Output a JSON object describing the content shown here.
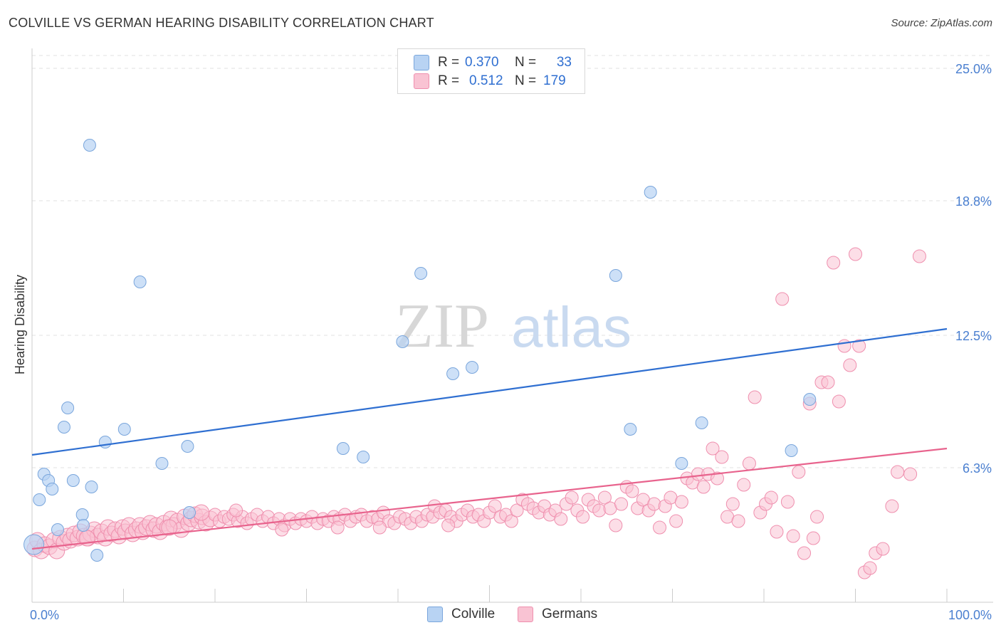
{
  "title": "COLVILLE VS GERMAN HEARING DISABILITY CORRELATION CHART",
  "source": "Source: ZipAtlas.com",
  "watermark": {
    "zip": "ZIP",
    "atlas": "atlas"
  },
  "legend_top": [
    {
      "r_label": "R =",
      "r_value": "0.370",
      "n_label": "N =",
      "n_value": "33"
    },
    {
      "r_label": "R =",
      "r_value": "0.512",
      "n_label": "N =",
      "n_value": "179"
    }
  ],
  "colors": {
    "colville_fill": "#b8d3f3",
    "colville_stroke": "#7aa6dc",
    "colville_line": "#2f6fd1",
    "germans_fill": "#f9c3d3",
    "germans_stroke": "#ef8fae",
    "germans_line": "#e8638d",
    "axis_label": "#4a7fd0",
    "value_text": "#2f6fd1"
  },
  "chart_data": {
    "type": "scatter",
    "title": "COLVILLE VS GERMAN HEARING DISABILITY CORRELATION CHART",
    "xlabel": "",
    "ylabel": "Hearing Disability",
    "xlim": [
      0,
      100
    ],
    "ylim": [
      0,
      25.6
    ],
    "x_tick_labels": [
      "0.0%",
      "100.0%"
    ],
    "y_ticks": [
      6.3,
      12.5,
      18.8,
      25.0
    ],
    "y_tick_labels": [
      "6.3%",
      "12.5%",
      "18.8%",
      "25.0%"
    ],
    "grid": true,
    "legend_placement": "top-center",
    "series": [
      {
        "name": "Colville",
        "r": 0.37,
        "n": 33,
        "trend": [
          [
            0,
            6.9
          ],
          [
            100,
            12.8
          ]
        ],
        "points": [
          [
            0.2,
            2.7
          ],
          [
            0.8,
            4.8
          ],
          [
            1.3,
            6.0
          ],
          [
            1.8,
            5.7
          ],
          [
            2.2,
            5.3
          ],
          [
            2.8,
            3.4
          ],
          [
            3.5,
            8.2
          ],
          [
            3.9,
            9.1
          ],
          [
            4.5,
            5.7
          ],
          [
            5.5,
            4.1
          ],
          [
            5.6,
            3.6
          ],
          [
            6.5,
            5.4
          ],
          [
            7.1,
            2.2
          ],
          [
            8.0,
            7.5
          ],
          [
            10.1,
            8.1
          ],
          [
            11.8,
            15.0
          ],
          [
            14.2,
            6.5
          ],
          [
            17.0,
            7.3
          ],
          [
            17.2,
            4.2
          ],
          [
            6.3,
            21.4
          ],
          [
            34.0,
            7.2
          ],
          [
            36.2,
            6.8
          ],
          [
            40.5,
            12.2
          ],
          [
            42.5,
            15.4
          ],
          [
            46.0,
            10.7
          ],
          [
            48.1,
            11.0
          ],
          [
            63.8,
            15.3
          ],
          [
            65.4,
            8.1
          ],
          [
            67.6,
            19.2
          ],
          [
            71.0,
            6.5
          ],
          [
            73.2,
            8.4
          ],
          [
            83.0,
            7.1
          ],
          [
            85.0,
            9.5
          ]
        ]
      },
      {
        "name": "Germans",
        "r": 0.512,
        "n": 179,
        "trend": [
          [
            0,
            2.5
          ],
          [
            100,
            7.2
          ]
        ],
        "points": [
          [
            0.3,
            2.5
          ],
          [
            0.6,
            2.9
          ],
          [
            1.0,
            2.4
          ],
          [
            1.4,
            2.7
          ],
          [
            1.9,
            2.6
          ],
          [
            2.4,
            2.9
          ],
          [
            2.7,
            2.4
          ],
          [
            3.1,
            3.0
          ],
          [
            3.5,
            2.8
          ],
          [
            3.9,
            3.1
          ],
          [
            4.2,
            2.9
          ],
          [
            4.6,
            3.2
          ],
          [
            5.0,
            3.0
          ],
          [
            5.3,
            3.3
          ],
          [
            5.7,
            3.1
          ],
          [
            6.1,
            3.0
          ],
          [
            6.4,
            3.2
          ],
          [
            6.8,
            3.4
          ],
          [
            7.2,
            3.1
          ],
          [
            7.6,
            3.3
          ],
          [
            8.0,
            3.0
          ],
          [
            8.3,
            3.5
          ],
          [
            8.7,
            3.2
          ],
          [
            9.1,
            3.4
          ],
          [
            9.5,
            3.1
          ],
          [
            9.9,
            3.5
          ],
          [
            10.2,
            3.3
          ],
          [
            10.6,
            3.6
          ],
          [
            11.0,
            3.2
          ],
          [
            11.4,
            3.4
          ],
          [
            11.8,
            3.6
          ],
          [
            12.1,
            3.3
          ],
          [
            12.5,
            3.5
          ],
          [
            12.9,
            3.7
          ],
          [
            13.3,
            3.4
          ],
          [
            13.6,
            3.6
          ],
          [
            14.0,
            3.3
          ],
          [
            14.4,
            3.7
          ],
          [
            14.8,
            3.5
          ],
          [
            15.2,
            3.9
          ],
          [
            15.5,
            3.6
          ],
          [
            15.9,
            3.8
          ],
          [
            16.3,
            3.4
          ],
          [
            16.7,
            4.0
          ],
          [
            17.1,
            3.7
          ],
          [
            17.4,
            3.9
          ],
          [
            17.8,
            4.1
          ],
          [
            18.2,
            3.8
          ],
          [
            18.6,
            4.0
          ],
          [
            19.0,
            3.7
          ],
          [
            19.5,
            3.9
          ],
          [
            20.0,
            4.1
          ],
          [
            20.5,
            3.8
          ],
          [
            21.0,
            4.0
          ],
          [
            21.5,
            3.9
          ],
          [
            22.0,
            4.1
          ],
          [
            22.5,
            3.8
          ],
          [
            23.0,
            4.0
          ],
          [
            23.5,
            3.7
          ],
          [
            24.0,
            3.9
          ],
          [
            24.6,
            4.1
          ],
          [
            25.2,
            3.8
          ],
          [
            25.8,
            4.0
          ],
          [
            26.4,
            3.7
          ],
          [
            27.0,
            3.9
          ],
          [
            27.6,
            3.6
          ],
          [
            28.2,
            3.9
          ],
          [
            28.8,
            3.7
          ],
          [
            29.4,
            3.9
          ],
          [
            30.0,
            3.8
          ],
          [
            30.6,
            4.0
          ],
          [
            31.2,
            3.7
          ],
          [
            31.8,
            3.9
          ],
          [
            32.4,
            3.8
          ],
          [
            33.0,
            4.0
          ],
          [
            33.6,
            3.9
          ],
          [
            34.2,
            4.1
          ],
          [
            34.8,
            3.8
          ],
          [
            35.4,
            4.0
          ],
          [
            36.0,
            4.1
          ],
          [
            36.6,
            3.8
          ],
          [
            37.2,
            4.0
          ],
          [
            37.8,
            3.9
          ],
          [
            38.4,
            4.2
          ],
          [
            39.0,
            3.8
          ],
          [
            39.6,
            3.7
          ],
          [
            40.2,
            4.0
          ],
          [
            40.8,
            3.9
          ],
          [
            41.4,
            3.7
          ],
          [
            42.0,
            4.0
          ],
          [
            42.6,
            3.8
          ],
          [
            43.2,
            4.1
          ],
          [
            43.8,
            4.0
          ],
          [
            44.0,
            4.5
          ],
          [
            44.6,
            4.2
          ],
          [
            45.2,
            4.3
          ],
          [
            45.8,
            4.0
          ],
          [
            46.4,
            3.8
          ],
          [
            47.0,
            4.1
          ],
          [
            47.6,
            4.3
          ],
          [
            48.2,
            4.0
          ],
          [
            48.8,
            4.1
          ],
          [
            49.4,
            3.8
          ],
          [
            50.0,
            4.2
          ],
          [
            50.6,
            4.5
          ],
          [
            51.2,
            4.0
          ],
          [
            51.8,
            4.1
          ],
          [
            52.4,
            3.8
          ],
          [
            53.0,
            4.3
          ],
          [
            53.6,
            4.8
          ],
          [
            54.2,
            4.6
          ],
          [
            54.8,
            4.4
          ],
          [
            55.4,
            4.2
          ],
          [
            56.0,
            4.5
          ],
          [
            56.6,
            4.1
          ],
          [
            57.2,
            4.3
          ],
          [
            57.8,
            3.9
          ],
          [
            58.4,
            4.6
          ],
          [
            59.0,
            4.9
          ],
          [
            59.6,
            4.3
          ],
          [
            60.2,
            4.0
          ],
          [
            60.8,
            4.8
          ],
          [
            61.4,
            4.5
          ],
          [
            62.0,
            4.3
          ],
          [
            62.6,
            4.9
          ],
          [
            63.2,
            4.4
          ],
          [
            63.8,
            3.6
          ],
          [
            64.4,
            4.6
          ],
          [
            65.0,
            5.4
          ],
          [
            65.6,
            5.2
          ],
          [
            66.2,
            4.4
          ],
          [
            66.8,
            4.8
          ],
          [
            67.4,
            4.3
          ],
          [
            68.0,
            4.6
          ],
          [
            68.6,
            3.5
          ],
          [
            69.2,
            4.5
          ],
          [
            69.8,
            4.9
          ],
          [
            70.4,
            3.8
          ],
          [
            71.0,
            4.7
          ],
          [
            71.6,
            5.8
          ],
          [
            72.2,
            5.6
          ],
          [
            72.8,
            6.0
          ],
          [
            73.4,
            5.4
          ],
          [
            73.9,
            6.0
          ],
          [
            74.4,
            7.2
          ],
          [
            74.9,
            5.8
          ],
          [
            75.4,
            6.8
          ],
          [
            76.0,
            4.0
          ],
          [
            76.6,
            4.6
          ],
          [
            77.2,
            3.8
          ],
          [
            77.8,
            5.5
          ],
          [
            78.4,
            6.5
          ],
          [
            79.0,
            9.6
          ],
          [
            79.6,
            4.2
          ],
          [
            80.2,
            4.6
          ],
          [
            80.8,
            4.9
          ],
          [
            81.4,
            3.3
          ],
          [
            82.0,
            14.2
          ],
          [
            82.6,
            4.7
          ],
          [
            83.2,
            3.1
          ],
          [
            83.8,
            6.1
          ],
          [
            84.4,
            2.3
          ],
          [
            85.0,
            9.3
          ],
          [
            85.4,
            3.0
          ],
          [
            85.8,
            4.0
          ],
          [
            86.3,
            10.3
          ],
          [
            87.0,
            10.3
          ],
          [
            87.6,
            15.9
          ],
          [
            88.2,
            9.4
          ],
          [
            88.8,
            12.0
          ],
          [
            89.4,
            11.1
          ],
          [
            90.0,
            16.3
          ],
          [
            90.4,
            12.0
          ],
          [
            91.0,
            1.4
          ],
          [
            91.6,
            1.6
          ],
          [
            92.2,
            2.3
          ],
          [
            93.0,
            2.5
          ],
          [
            94.0,
            4.5
          ],
          [
            94.6,
            6.1
          ],
          [
            96.0,
            6.0
          ],
          [
            97.0,
            16.2
          ],
          [
            6.0,
            3.0
          ],
          [
            15.0,
            3.5
          ],
          [
            18.5,
            4.2
          ],
          [
            22.3,
            4.3
          ],
          [
            27.3,
            3.4
          ],
          [
            33.4,
            3.5
          ],
          [
            38.0,
            3.5
          ],
          [
            45.5,
            3.6
          ]
        ]
      }
    ]
  }
}
